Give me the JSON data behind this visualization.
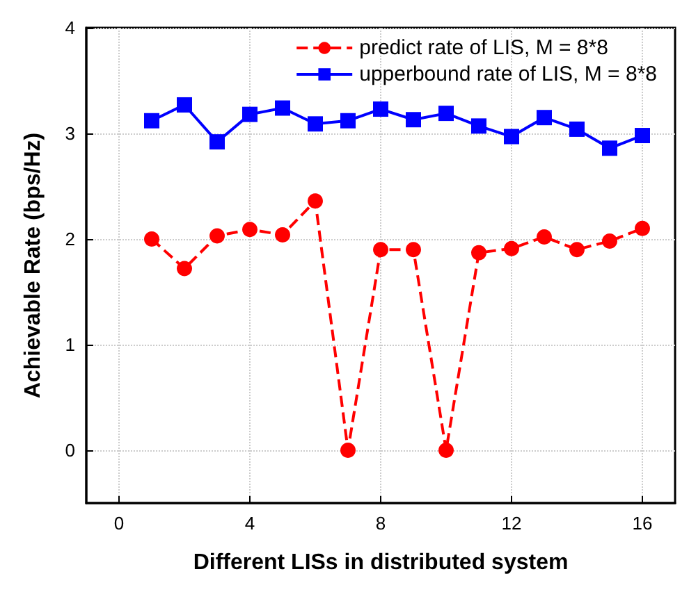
{
  "chart_data": {
    "type": "line",
    "xlabel": "Different LISs in distributed system",
    "ylabel": "Achievable Rate (bps/Hz)",
    "x": [
      1,
      2,
      3,
      4,
      5,
      6,
      7,
      8,
      9,
      10,
      11,
      12,
      13,
      14,
      15,
      16
    ],
    "series": [
      {
        "name": "predict rate of LIS, M = 8*8",
        "color": "#ff0000",
        "marker": "circle",
        "line_style": "dashed",
        "values": [
          2.0,
          1.72,
          2.03,
          2.09,
          2.04,
          2.36,
          0.0,
          1.9,
          1.9,
          0.0,
          1.87,
          1.91,
          2.02,
          1.9,
          1.98,
          2.1
        ]
      },
      {
        "name": "upperbound rate of LIS, M = 8*8",
        "color": "#0000ff",
        "marker": "square",
        "line_style": "solid",
        "values": [
          3.12,
          3.27,
          2.92,
          3.18,
          3.24,
          3.09,
          3.12,
          3.23,
          3.13,
          3.19,
          3.07,
          2.97,
          3.15,
          3.04,
          2.86,
          2.98
        ]
      }
    ],
    "xlim": [
      -1,
      17
    ],
    "xticks": [
      0,
      4,
      8,
      12,
      16
    ],
    "ylim": [
      -0.5,
      4
    ],
    "yticks": [
      0,
      1,
      2,
      3,
      4
    ],
    "grid": true,
    "legend": "top right"
  }
}
